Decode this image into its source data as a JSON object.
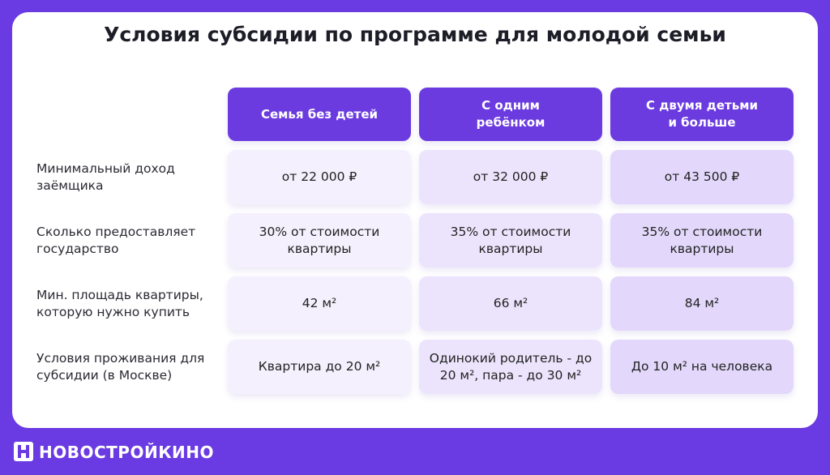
{
  "title": "Условия субсидии по программе для молодой семьи",
  "table": {
    "columns": [
      "Семья без детей",
      "С одним ребёнком",
      "С двумя детьми и больше"
    ],
    "rows": [
      {
        "label": "Минимальный доход заёмщика",
        "cells": [
          "от 22 000 ₽",
          "от 32 000 ₽",
          "от 43 500 ₽"
        ]
      },
      {
        "label": "Сколько предоставляет государство",
        "cells": [
          "30% от стоимости квартиры",
          "35% от стоимости квартиры",
          "35% от стоимости квартиры"
        ]
      },
      {
        "label": "Мин. площадь квартиры, которую нужно купить",
        "cells": [
          "42 м²",
          "66 м²",
          "84 м²"
        ]
      },
      {
        "label": "Условия проживания для субсидии (в Москве)",
        "cells": [
          "Квартира до 20 м²",
          "Одинокий родитель - до 20 м², пара - до 30 м²",
          "До 10 м² на человека"
        ]
      }
    ]
  },
  "footer": {
    "brand": "НОВОСТРОЙКИНО"
  }
}
